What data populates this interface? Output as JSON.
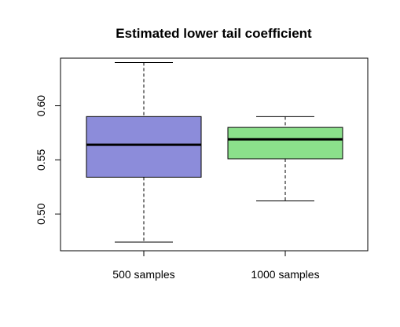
{
  "chart_data": {
    "type": "boxplot",
    "title": "Estimated lower tail coefficient",
    "xlabel": "",
    "ylabel": "",
    "categories": [
      "500 samples",
      "1000 samples"
    ],
    "boxes": [
      {
        "min": 0.474,
        "q1": 0.534,
        "median": 0.564,
        "q3": 0.59,
        "max": 0.64,
        "color": "#8C8CDA"
      },
      {
        "min": 0.512,
        "q1": 0.551,
        "median": 0.569,
        "q3": 0.58,
        "max": 0.59,
        "color": "#8BE08B"
      }
    ],
    "ylim": [
      0.466,
      0.644
    ],
    "yticks": [
      0.5,
      0.55,
      0.6
    ],
    "ytick_labels": [
      "0.50",
      "0.55",
      "0.60"
    ],
    "grid": false,
    "legend": "none"
  }
}
